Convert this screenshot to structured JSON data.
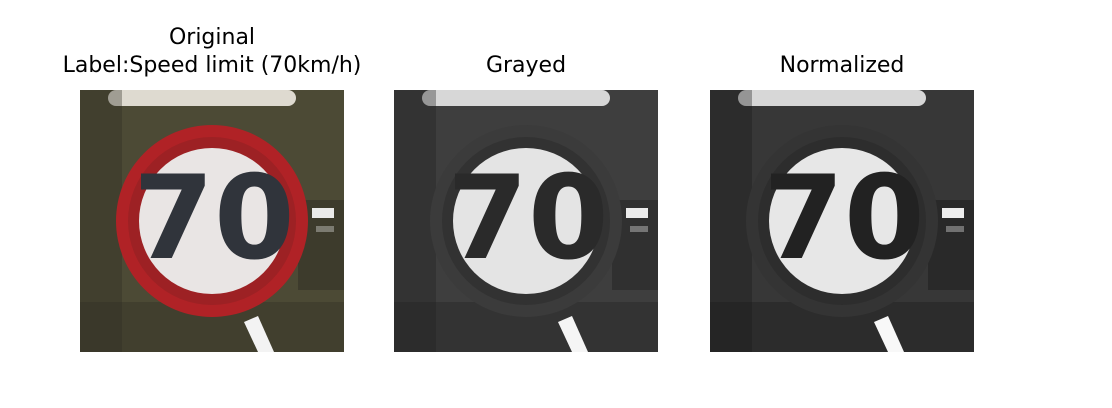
{
  "figure": {
    "panels": [
      {
        "title_lines": [
          "Original",
          "Label:Speed limit (70km/h)"
        ],
        "image": {
          "subject": "speed-limit-sign",
          "number": "70",
          "palette": {
            "background": "#4c4a35",
            "background_dark": "#2d2a21",
            "plate_top": "#dedad0",
            "ring": "#b02226",
            "ring_dark": "#7f1f22",
            "face": "#e9e5e4",
            "digits": "#30343b",
            "accent": "#f3f3f3"
          }
        }
      },
      {
        "title_lines": [
          "",
          "Grayed"
        ],
        "image": {
          "subject": "speed-limit-sign",
          "number": "70",
          "palette": {
            "background": "#3e3e3e",
            "background_dark": "#1f1f1f",
            "plate_top": "#d7d7d7",
            "ring": "#3b3b3b",
            "ring_dark": "#262626",
            "face": "#e4e4e4",
            "digits": "#2a2a2a",
            "accent": "#f5f5f5"
          }
        }
      },
      {
        "title_lines": [
          "",
          "Normalized"
        ],
        "image": {
          "subject": "speed-limit-sign",
          "number": "70",
          "palette": {
            "background": "#373737",
            "background_dark": "#191919",
            "plate_top": "#d7d7d7",
            "ring": "#343434",
            "ring_dark": "#222222",
            "face": "#e7e7e7",
            "digits": "#222222",
            "accent": "#f8f8f8"
          }
        }
      }
    ]
  }
}
